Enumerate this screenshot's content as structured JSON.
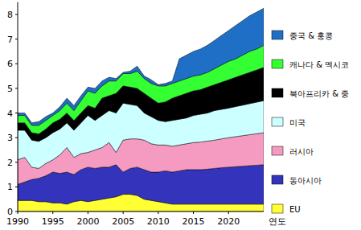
{
  "chart_data": {
    "type": "area",
    "stacked": true,
    "xlabel": "연도",
    "x": [
      1990,
      1991,
      1992,
      1993,
      1994,
      1995,
      1996,
      1997,
      1998,
      1999,
      2000,
      2001,
      2002,
      2003,
      2004,
      2005,
      2006,
      2007,
      2008,
      2009,
      2010,
      2011,
      2012,
      2013,
      2014,
      2015,
      2016,
      2017,
      2018,
      2019,
      2020,
      2021,
      2022,
      2023,
      2024,
      2025
    ],
    "xlim": [
      1990,
      2025
    ],
    "xticks": [
      1990,
      1995,
      2000,
      2005,
      2010,
      2015,
      2020
    ],
    "ylim": [
      0,
      8.5
    ],
    "yticks": [
      0,
      1,
      2,
      3,
      4,
      5,
      6,
      7,
      8
    ],
    "grid": false,
    "legend": "right",
    "series": [
      {
        "name": "EU",
        "color": "#ffff33",
        "values": [
          0.45,
          0.45,
          0.45,
          0.4,
          0.4,
          0.35,
          0.35,
          0.3,
          0.4,
          0.45,
          0.4,
          0.45,
          0.5,
          0.55,
          0.6,
          0.7,
          0.7,
          0.65,
          0.5,
          0.45,
          0.4,
          0.35,
          0.3,
          0.3,
          0.3,
          0.3,
          0.3,
          0.3,
          0.3,
          0.3,
          0.3,
          0.3,
          0.3,
          0.3,
          0.3,
          0.3
        ]
      },
      {
        "name": "동아시아",
        "color": "#3333bb",
        "values": [
          0.65,
          0.75,
          0.85,
          0.95,
          1.05,
          1.25,
          1.2,
          1.3,
          1.1,
          1.25,
          1.4,
          1.3,
          1.3,
          1.25,
          1.3,
          0.9,
          1.05,
          1.15,
          1.2,
          1.15,
          1.2,
          1.3,
          1.3,
          1.35,
          1.4,
          1.4,
          1.4,
          1.42,
          1.45,
          1.48,
          1.5,
          1.52,
          1.54,
          1.56,
          1.58,
          1.6
        ]
      },
      {
        "name": "러시아",
        "color": "#f59ac0",
        "values": [
          1.0,
          1.0,
          0.5,
          0.4,
          0.5,
          0.5,
          0.75,
          1.0,
          0.7,
          0.65,
          0.6,
          0.75,
          0.8,
          1.0,
          0.5,
          1.3,
          1.2,
          1.15,
          1.2,
          1.15,
          1.1,
          1.05,
          1.05,
          1.05,
          1.05,
          1.1,
          1.12,
          1.14,
          1.15,
          1.17,
          1.2,
          1.22,
          1.24,
          1.26,
          1.28,
          1.3
        ]
      },
      {
        "name": "미국",
        "color": "#ccffff",
        "values": [
          1.2,
          1.1,
          1.1,
          1.1,
          1.05,
          1.1,
          1.05,
          1.0,
          1.1,
          1.25,
          1.5,
          1.2,
          1.3,
          1.3,
          1.6,
          1.5,
          1.4,
          1.35,
          1.1,
          1.1,
          1.0,
          0.95,
          1.05,
          1.05,
          1.05,
          1.1,
          1.13,
          1.14,
          1.2,
          1.2,
          1.2,
          1.22,
          1.24,
          1.26,
          1.28,
          1.3
        ]
      },
      {
        "name": "북아프리카 & 중",
        "color": "#000000",
        "values": [
          0.3,
          0.3,
          0.3,
          0.3,
          0.35,
          0.4,
          0.4,
          0.4,
          0.4,
          0.4,
          0.4,
          0.5,
          0.7,
          0.6,
          0.8,
          0.7,
          0.7,
          0.7,
          0.8,
          0.75,
          0.7,
          0.8,
          0.9,
          0.95,
          1.0,
          1.0,
          1.0,
          1.05,
          1.05,
          1.1,
          1.15,
          1.19,
          1.23,
          1.27,
          1.31,
          1.35
        ]
      },
      {
        "name": "캐나다 & 멕시코",
        "color": "#33ff33",
        "values": [
          0.3,
          0.3,
          0.3,
          0.35,
          0.35,
          0.3,
          0.35,
          0.4,
          0.4,
          0.5,
          0.6,
          0.6,
          0.5,
          0.6,
          0.5,
          0.5,
          0.55,
          0.7,
          0.6,
          0.6,
          0.7,
          0.65,
          0.6,
          0.6,
          0.6,
          0.6,
          0.6,
          0.6,
          0.65,
          0.7,
          0.75,
          0.75,
          0.8,
          0.85,
          0.85,
          0.9
        ]
      },
      {
        "name": "중국 & 홍콩",
        "color": "#1f6fc6",
        "values": [
          0.1,
          0.1,
          0.1,
          0.15,
          0.15,
          0.1,
          0.15,
          0.2,
          0.2,
          0.2,
          0.15,
          0.2,
          0.2,
          0.15,
          0.1,
          0.05,
          0.1,
          0.2,
          0.1,
          0.15,
          0.05,
          0.1,
          0.1,
          0.9,
          0.95,
          1.0,
          1.05,
          1.1,
          1.15,
          1.2,
          1.25,
          1.35,
          1.4,
          1.45,
          1.5,
          1.5
        ]
      }
    ]
  }
}
